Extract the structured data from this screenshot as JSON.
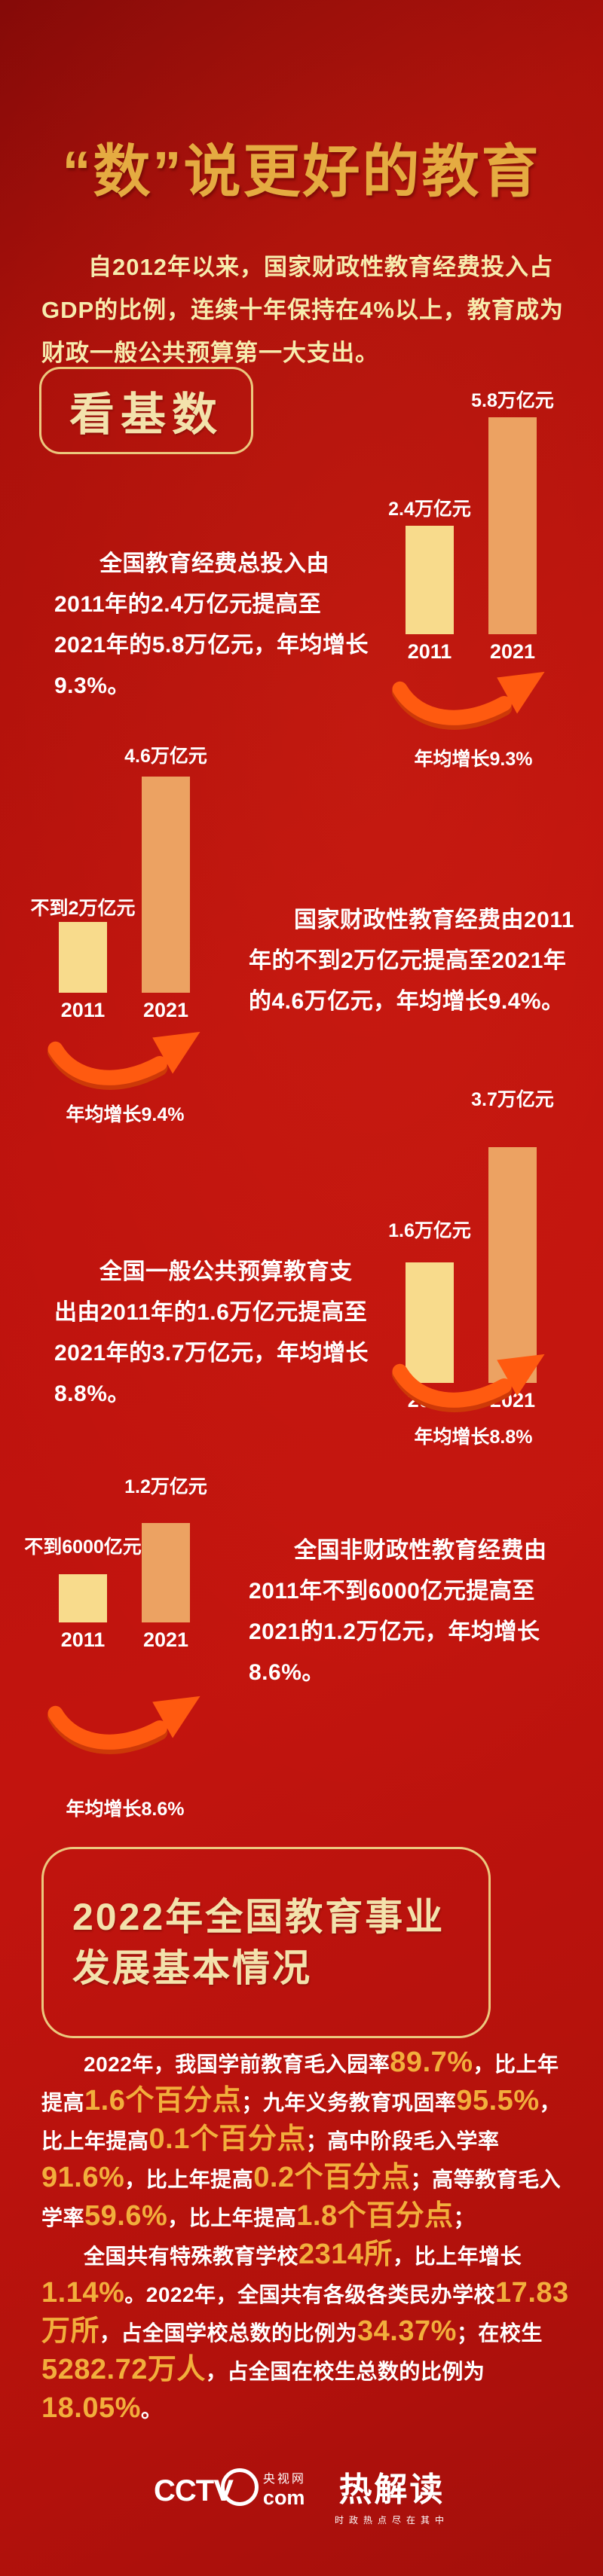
{
  "title": "“数”说更好的教育",
  "intro": "自2012年以来，国家财政性教育经费投入占GDP的比例，连续十年保持在4%以上，教育成为财政一般公共预算第一大支出。",
  "section_base": {
    "badge": "看基数"
  },
  "section_2022": {
    "badge_line1": "2022年全国教育事业",
    "badge_line2": "发展基本情况"
  },
  "theme": {
    "background": "#b5110c",
    "title_gold": "#e5ab41",
    "badge_cream": "#f3e2ac",
    "badge_border": "#ecc87e",
    "bar_2011": "#f8db8c",
    "bar_2021": "#eca262",
    "arrow_orange": "#ff5a10",
    "arrow_shadow": "#cd3908",
    "highlight_gold": "#f2ae3c",
    "body_text": "#ffffff",
    "intro_yellow": "#f7ecae"
  },
  "chart_data": [
    {
      "type": "bar",
      "title": "全国教育经费总投入",
      "categories": [
        "2011",
        "2021"
      ],
      "values": [
        2.4,
        5.8
      ],
      "unit": "万亿元",
      "bar_labels": [
        "2.4万亿元",
        "5.8万亿元"
      ],
      "colors": [
        "#f8db8c",
        "#eca262"
      ],
      "annual_growth_pct": 9.3,
      "growth_annotation": "年均增长9.3%",
      "description": "全国教育经费总投入由2011年的2.4万亿元提高至2021年的5.8万亿元，年均增长9.3%。",
      "layout": "bars-right-text-left"
    },
    {
      "type": "bar",
      "title": "国家财政性教育经费",
      "categories": [
        "2011",
        "2021"
      ],
      "values": [
        2,
        4.6
      ],
      "unit": "万亿元",
      "bar_labels": [
        "不到2万亿元",
        "4.6万亿元"
      ],
      "colors": [
        "#f8db8c",
        "#eca262"
      ],
      "annual_growth_pct": 9.4,
      "growth_annotation": "年均增长9.4%",
      "description": "国家财政性教育经费由2011年的不到2万亿元提高至2021年的4.6万亿元，年均增长9.4%。",
      "layout": "bars-left-text-right"
    },
    {
      "type": "bar",
      "title": "全国一般公共预算教育支出",
      "categories": [
        "2011",
        "2021"
      ],
      "values": [
        1.6,
        3.7
      ],
      "unit": "万亿元",
      "bar_labels": [
        "1.6万亿元",
        "3.7万亿元"
      ],
      "colors": [
        "#f8db8c",
        "#eca262"
      ],
      "annual_growth_pct": 8.8,
      "growth_annotation": "年均增长8.8%",
      "description": "全国一般公共预算教育支出由2011年的1.6万亿元提高至2021年的3.7万亿元，年均增长8.8%。",
      "layout": "bars-right-text-left"
    },
    {
      "type": "bar",
      "title": "全国非财政性教育经费",
      "categories": [
        "2011",
        "2021"
      ],
      "values": [
        0.6,
        1.2
      ],
      "unit": "万亿元",
      "bar_labels": [
        "不到6000亿元",
        "1.2万亿元"
      ],
      "colors": [
        "#f8db8c",
        "#eca262"
      ],
      "annual_growth_pct": 8.6,
      "growth_annotation": "年均增长8.6%",
      "description": "全国非财政性教育经费由2011年不到6000亿元提高至2021的1.2万亿元，年均增长8.6%。",
      "layout": "bars-left-text-right"
    }
  ],
  "stats": {
    "paragraphs": [
      [
        {
          "t": "2022年，我国学前教育毛入园率",
          "hl": false
        },
        {
          "t": "89.7%",
          "hl": true
        },
        {
          "t": "，比上年提高",
          "hl": false
        },
        {
          "t": "1.6个百分点",
          "hl": true
        },
        {
          "t": "；九年义务教育巩固率",
          "hl": false
        },
        {
          "t": "95.5%",
          "hl": true
        },
        {
          "t": "，比上年提高",
          "hl": false
        },
        {
          "t": "0.1个百分点",
          "hl": true
        },
        {
          "t": "；高中阶段毛入学率",
          "hl": false
        },
        {
          "t": "91.6%",
          "hl": true
        },
        {
          "t": "，比上年提高",
          "hl": false
        },
        {
          "t": "0.2个百分点",
          "hl": true
        },
        {
          "t": "；高等教育毛入学率",
          "hl": false
        },
        {
          "t": "59.6%",
          "hl": true
        },
        {
          "t": "，比上年提高",
          "hl": false
        },
        {
          "t": "1.8个百分点",
          "hl": true
        },
        {
          "t": "；",
          "hl": false
        }
      ],
      [
        {
          "t": "全国共有特殊教育学校",
          "hl": false
        },
        {
          "t": "2314所",
          "hl": true
        },
        {
          "t": "，比上年增长",
          "hl": false
        },
        {
          "t": "1.14%",
          "hl": true
        },
        {
          "t": "。2022年，全国共有各级各类民办学校",
          "hl": false
        },
        {
          "t": "17.83万所",
          "hl": true
        },
        {
          "t": "，占全国学校总数的比例为",
          "hl": false
        },
        {
          "t": "34.37%",
          "hl": true
        },
        {
          "t": "；在校生",
          "hl": false
        },
        {
          "t": "5282.72万人",
          "hl": true
        },
        {
          "t": "，占全国在校生总数的比例为",
          "hl": false
        },
        {
          "t": "18.05%",
          "hl": true
        },
        {
          "t": "。",
          "hl": false
        }
      ]
    ]
  },
  "footer": {
    "cctv_word": "CCTV",
    "cctv_cn": "央视网",
    "cctv_com": "com",
    "brand": "热解读",
    "brand_tagline": "时政热点尽在其中"
  }
}
